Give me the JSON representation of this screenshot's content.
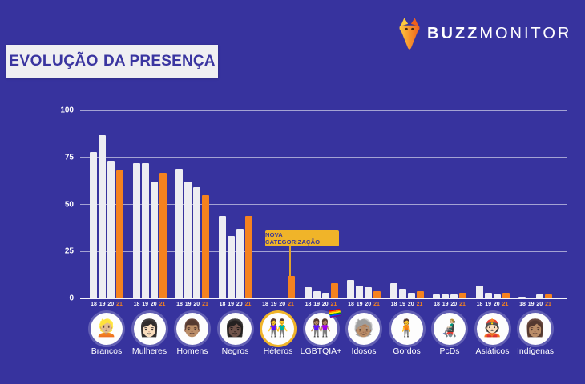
{
  "page": {
    "background": "#37339E",
    "accent_orange": "#F5821F",
    "accent_yellow": "#F0B429"
  },
  "header": {
    "title_main": "EVOLUÇÃO",
    "title_rest": "DA PRESENÇA",
    "logo": {
      "bold": "BUZZ",
      "light": "MONITOR",
      "icon": "buzzmonitor-anteater-icon",
      "icon_color": "#F5821F"
    }
  },
  "annotation": {
    "label": "NOVA CATEGORIZAÇÃO"
  },
  "chart_data": {
    "type": "bar",
    "title": "EVOLUÇÃO DA PRESENÇA",
    "categories": [
      "Brancos",
      "Mulheres",
      "Homens",
      "Negros",
      "Héteros",
      "LGBTQIA+",
      "Idosos",
      "Gordos",
      "PcDs",
      "Asiáticos",
      "Indígenas"
    ],
    "category_emojis": [
      "👱🏼",
      "👩🏻",
      "👨🏽",
      "👩🏿",
      "👫",
      "👭🏽",
      "🧓🏽",
      "🧍",
      "👨🏼‍🦼",
      "👲🏻",
      "👩🏽"
    ],
    "category_emoji_names": [
      "person-blond-hair",
      "woman-light-skin",
      "man-medium-skin",
      "woman-dark-skin",
      "man-woman-holding-hands",
      "two-women-holding-hands",
      "older-person",
      "person-standing",
      "person-motorized-wheelchair",
      "person-with-skullcap",
      "woman-medium-skin"
    ],
    "x_tick_labels": [
      "18",
      "19",
      "20",
      "21"
    ],
    "series": [
      {
        "name": "18",
        "color": "#EDEDF2",
        "values": [
          78,
          72,
          69,
          44,
          0,
          6,
          10,
          8,
          2,
          7,
          1
        ]
      },
      {
        "name": "19",
        "color": "#EDEDF2",
        "values": [
          87,
          72,
          62,
          33,
          0,
          4,
          7,
          5,
          2,
          3,
          0.5
        ]
      },
      {
        "name": "20",
        "color": "#EDEDF2",
        "values": [
          73,
          62,
          59,
          37,
          0,
          3,
          6,
          3,
          2,
          2,
          2
        ]
      },
      {
        "name": "21",
        "color": "#F5821F",
        "values": [
          68,
          67,
          55,
          44,
          12,
          8,
          4,
          4,
          3,
          3,
          2
        ]
      }
    ],
    "ylim": [
      0,
      100
    ],
    "yticks": [
      0,
      25,
      50,
      75,
      100
    ],
    "grid": true,
    "legend_position": "none",
    "highlighted_category": "Héteros",
    "highlight_ring_color": "#F0B429",
    "rainbow_flag_category": "LGBTQIA+",
    "annotation": {
      "text": "NOVA CATEGORIZAÇÃO",
      "target_category": "Héteros",
      "target_series": "21"
    }
  }
}
